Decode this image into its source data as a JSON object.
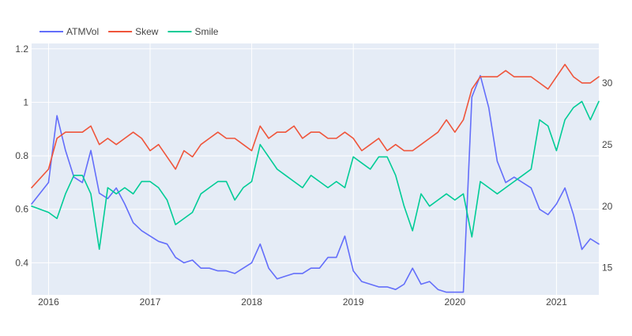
{
  "chart_data": {
    "type": "line",
    "background": "#E5ECF6",
    "grid": true,
    "legend_position": "top-left",
    "x": [
      "2015-11",
      "2016-01",
      "2016-02",
      "2016-03",
      "2016-04",
      "2016-05",
      "2016-06",
      "2016-07",
      "2016-08",
      "2016-09",
      "2016-10",
      "2016-11",
      "2016-12",
      "2017-01",
      "2017-02",
      "2017-03",
      "2017-04",
      "2017-05",
      "2017-06",
      "2017-07",
      "2017-08",
      "2017-09",
      "2017-10",
      "2017-11",
      "2017-12",
      "2018-01",
      "2018-02",
      "2018-03",
      "2018-04",
      "2018-05",
      "2018-06",
      "2018-07",
      "2018-08",
      "2018-09",
      "2018-10",
      "2018-11",
      "2018-12",
      "2019-01",
      "2019-02",
      "2019-03",
      "2019-04",
      "2019-05",
      "2019-06",
      "2019-07",
      "2019-08",
      "2019-09",
      "2019-10",
      "2019-11",
      "2019-12",
      "2020-01",
      "2020-02",
      "2020-03",
      "2020-04",
      "2020-05",
      "2020-06",
      "2020-07",
      "2020-08",
      "2020-09",
      "2020-10",
      "2020-11",
      "2020-12",
      "2021-01",
      "2021-02",
      "2021-03",
      "2021-04",
      "2021-05",
      "2021-06"
    ],
    "xaxis": {
      "ticks": [
        "2016",
        "2017",
        "2018",
        "2019",
        "2020",
        "2021"
      ],
      "range": [
        "2015-11",
        "2021-06"
      ]
    },
    "yaxis_left": {
      "range": [
        0.28,
        1.22
      ],
      "ticks": [
        0.4,
        0.6,
        0.8,
        1,
        1.2
      ],
      "tick_labels": [
        "0.4",
        "0.6",
        "0.8",
        "1",
        "1.2"
      ]
    },
    "yaxis_right": {
      "range": [
        12.8,
        33.2
      ],
      "ticks": [
        15,
        20,
        25,
        30
      ],
      "tick_labels": [
        "15",
        "20",
        "25",
        "30"
      ]
    },
    "series": [
      {
        "name": "ATMVol",
        "color": "#636EFA",
        "axis": "left",
        "values": [
          0.62,
          0.7,
          0.95,
          0.82,
          0.72,
          0.7,
          0.82,
          0.66,
          0.64,
          0.68,
          0.62,
          0.55,
          0.52,
          0.5,
          0.48,
          0.47,
          0.42,
          0.4,
          0.41,
          0.38,
          0.38,
          0.37,
          0.37,
          0.36,
          0.38,
          0.4,
          0.47,
          0.38,
          0.34,
          0.35,
          0.36,
          0.36,
          0.38,
          0.38,
          0.42,
          0.42,
          0.5,
          0.37,
          0.33,
          0.32,
          0.31,
          0.31,
          0.3,
          0.32,
          0.38,
          0.32,
          0.33,
          0.3,
          0.29,
          0.29,
          0.29,
          1.02,
          1.1,
          0.98,
          0.78,
          0.7,
          0.72,
          0.7,
          0.68,
          0.6,
          0.58,
          0.62,
          0.68,
          0.58,
          0.45,
          0.49,
          0.47
        ]
      },
      {
        "name": "Skew",
        "color": "#EF553B",
        "axis": "right",
        "values": [
          21.5,
          23,
          25.5,
          26,
          26,
          26,
          26.5,
          25,
          25.5,
          25,
          25.5,
          26,
          25.5,
          24.5,
          25,
          24,
          23,
          24.5,
          24,
          25,
          25.5,
          26,
          25.5,
          25.5,
          25,
          24.5,
          26.5,
          25.5,
          26,
          26,
          26.5,
          25.5,
          26,
          26,
          25.5,
          25.5,
          26,
          25.5,
          24.5,
          25,
          25.5,
          24.5,
          25,
          24.5,
          24.5,
          25,
          25.5,
          26,
          27,
          26,
          27,
          29.5,
          30.5,
          30.5,
          30.5,
          31,
          30.5,
          30.5,
          30.5,
          30,
          29.5,
          30.5,
          31.5,
          30.5,
          30,
          30,
          30.5
        ]
      },
      {
        "name": "Smile",
        "color": "#00CC96",
        "axis": "right",
        "values": [
          20,
          19.5,
          19,
          21,
          22.5,
          22.5,
          21,
          16.5,
          21.5,
          21,
          21.5,
          21,
          22,
          22,
          21.5,
          20.5,
          18.5,
          19,
          19.5,
          21,
          21.5,
          22,
          22,
          20.5,
          21.5,
          22,
          25,
          24,
          23,
          22.5,
          22,
          21.5,
          22.5,
          22,
          21.5,
          22,
          21.5,
          24,
          23.5,
          23,
          24,
          24,
          22.5,
          20,
          18,
          21,
          20,
          20.5,
          21,
          20.5,
          21,
          17.5,
          22,
          21.5,
          21,
          21.5,
          22,
          22.5,
          23,
          27,
          26.5,
          24.5,
          27,
          28,
          28.5,
          27,
          28.5
        ]
      }
    ]
  }
}
